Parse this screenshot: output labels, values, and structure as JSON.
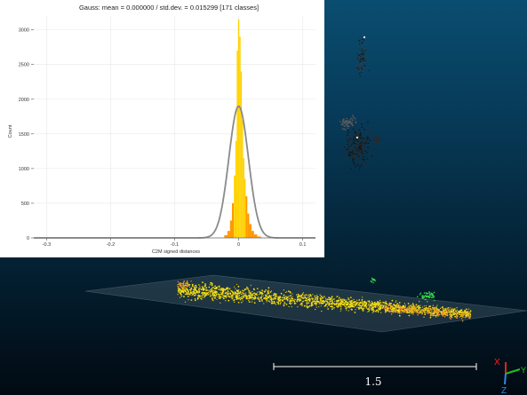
{
  "viewport": {
    "scale_bar_label": "1.5",
    "axes": {
      "x_label": "X",
      "y_label": "Y",
      "z_label": "Z"
    },
    "colors": {
      "bg_top": "#0a4d70",
      "bg_bottom": "#010a12",
      "points_main": "#f5e01a",
      "points_edge": "#e88a2c",
      "points_green": "#36d24a"
    }
  },
  "chart_data": {
    "type": "bar",
    "title": "Gauss: mean = 0.000000 / std.dev. = 0.015299 [171 classes]",
    "xlabel": "C2M signed distances",
    "ylabel": "Count",
    "xlim": [
      -0.32,
      0.12
    ],
    "ylim": [
      0,
      3200
    ],
    "x_ticks": [
      -0.3,
      -0.2,
      -0.1,
      0,
      0.1
    ],
    "y_ticks": [
      0,
      500,
      1000,
      1500,
      2000,
      2500,
      3000
    ],
    "grid": true,
    "gauss": {
      "mean": 0.0,
      "std": 0.015299,
      "peak": 1900
    },
    "bars": {
      "x": [
        -0.02,
        -0.015,
        -0.012,
        -0.009,
        -0.006,
        -0.004,
        -0.002,
        0.0,
        0.002,
        0.004,
        0.006,
        0.008,
        0.01,
        0.012,
        0.015,
        0.018,
        0.022,
        0.026,
        0.032
      ],
      "values": [
        40,
        100,
        250,
        500,
        900,
        1400,
        2700,
        3150,
        2900,
        2400,
        1700,
        1150,
        850,
        600,
        350,
        200,
        100,
        50,
        20
      ]
    },
    "colors": {
      "bar_high": "#ffd200",
      "bar_low": "#ff9900",
      "curve": "#8a8a8a",
      "grid": "#e8e8e8"
    }
  }
}
